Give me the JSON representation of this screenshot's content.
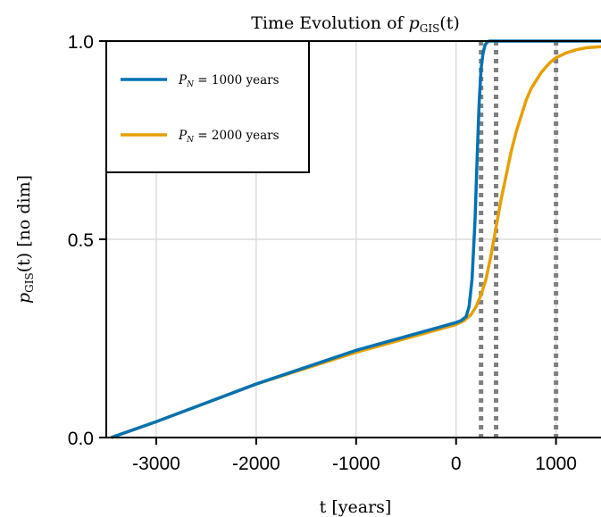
{
  "chart_data": {
    "type": "line",
    "title": "Time Evolution of p_GIS(t)",
    "title_parts": {
      "prefix": "Time Evolution of ",
      "var": "p",
      "sub": "GIS",
      "suffix": "(t)"
    },
    "xlabel": "t [years]",
    "ylabel_parts": {
      "var": "p",
      "sub": "GIS",
      "suffix": "(t)  [no dim]"
    },
    "xlim": [
      -3500,
      1450
    ],
    "ylim": [
      0,
      1
    ],
    "xticks": [
      -3000,
      -2000,
      -1000,
      0,
      1000
    ],
    "xtick_labels": [
      "-3000",
      "-2000",
      "-1000",
      "0",
      "1000"
    ],
    "yticks": [
      0,
      0.5,
      1
    ],
    "ytick_labels": [
      "0.0",
      "0.5",
      "1.0"
    ],
    "grid": true,
    "legend": {
      "position": "top-left"
    },
    "vlines": [
      250,
      400,
      1000
    ],
    "series": [
      {
        "name": "P_N = 1000 years",
        "legend": {
          "var": "P",
          "sub": "N",
          "suffix": " = 1000 years"
        },
        "color": "#0072b2",
        "x": [
          -3450,
          -3000,
          -2000,
          -1000,
          0,
          50,
          100,
          130,
          160,
          190,
          210,
          230,
          250,
          270,
          290,
          310,
          330,
          350,
          380,
          420,
          500,
          800,
          1450
        ],
        "y": [
          0.0,
          0.04,
          0.135,
          0.22,
          0.29,
          0.295,
          0.305,
          0.33,
          0.4,
          0.55,
          0.7,
          0.84,
          0.93,
          0.97,
          0.99,
          0.997,
          1.0,
          1.0,
          1.0,
          1.0,
          1.0,
          1.0,
          1.0
        ]
      },
      {
        "name": "P_N = 2000 years",
        "legend": {
          "var": "P",
          "sub": "N",
          "suffix": " = 2000 years"
        },
        "color": "#e69f00",
        "x": [
          -3450,
          -3000,
          -2000,
          -1000,
          0,
          80,
          150,
          200,
          250,
          300,
          350,
          400,
          450,
          500,
          550,
          600,
          650,
          700,
          750,
          800,
          850,
          900,
          950,
          1000,
          1100,
          1200,
          1300,
          1450
        ],
        "y": [
          0.0,
          0.04,
          0.135,
          0.215,
          0.285,
          0.295,
          0.31,
          0.33,
          0.36,
          0.4,
          0.46,
          0.53,
          0.6,
          0.66,
          0.72,
          0.77,
          0.81,
          0.85,
          0.88,
          0.9,
          0.92,
          0.935,
          0.948,
          0.958,
          0.97,
          0.978,
          0.983,
          0.986
        ]
      }
    ]
  }
}
